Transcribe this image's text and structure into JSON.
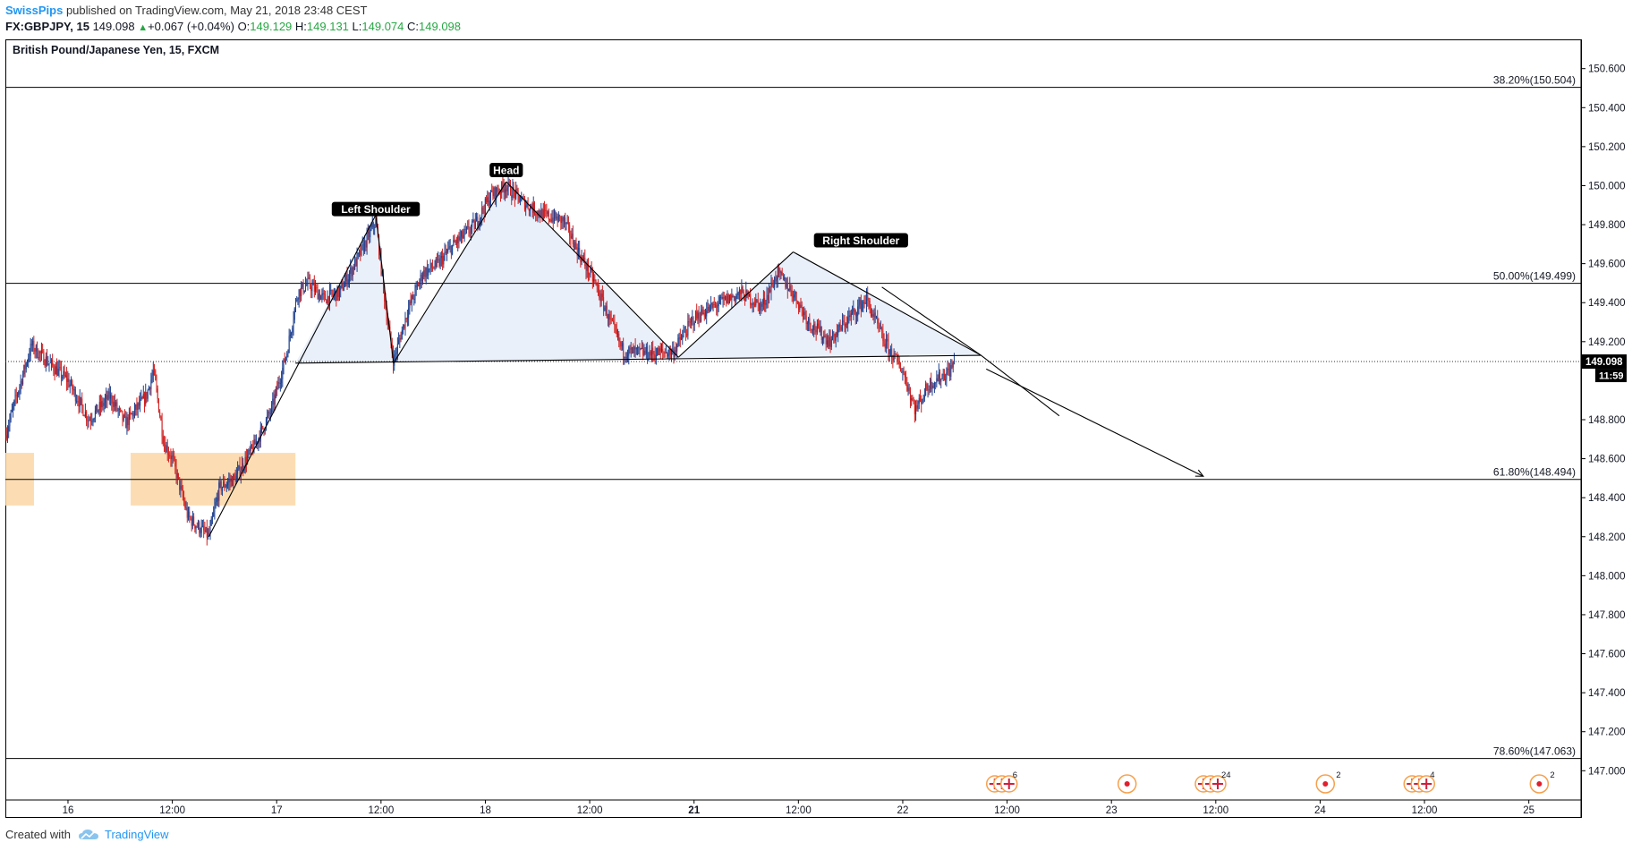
{
  "header": {
    "author": "SwissPips",
    "published": "published on TradingView.com, May 21, 2018 23:48 CEST",
    "symbol": "FX:GBPJPY, 15",
    "last": "149.098",
    "change": "+0.067 (+0.04%)",
    "o_label": "O:",
    "o_value": "149.129",
    "h_label": "H:",
    "h_value": "149.131",
    "l_label": "L:",
    "l_value": "149.074",
    "c_label": "C:",
    "c_value": "149.098"
  },
  "chart_data": {
    "type": "candlestick",
    "title": "British Pound/Japanese Yen, 15, FXCM",
    "ylim": [
      146.85,
      150.75
    ],
    "y_ticks": [
      "150.600",
      "150.400",
      "150.200",
      "150.000",
      "149.800",
      "149.600",
      "149.400",
      "149.200",
      "148.800",
      "148.600",
      "148.400",
      "148.200",
      "148.000",
      "147.800",
      "147.600",
      "147.400",
      "147.200",
      "147.000"
    ],
    "x_ticks": [
      {
        "label": "16",
        "pos": 0.5,
        "bold": false
      },
      {
        "label": "12:00",
        "pos": 1.5,
        "bold": false
      },
      {
        "label": "17",
        "pos": 2.5,
        "bold": false
      },
      {
        "label": "12:00",
        "pos": 3.5,
        "bold": false
      },
      {
        "label": "18",
        "pos": 4.5,
        "bold": false
      },
      {
        "label": "12:00",
        "pos": 5.5,
        "bold": false
      },
      {
        "label": "21",
        "pos": 6.5,
        "bold": true
      },
      {
        "label": "12:00",
        "pos": 7.5,
        "bold": false
      },
      {
        "label": "22",
        "pos": 8.5,
        "bold": false
      },
      {
        "label": "12:00",
        "pos": 9.5,
        "bold": false
      },
      {
        "label": "23",
        "pos": 10.5,
        "bold": false
      },
      {
        "label": "12:00",
        "pos": 11.5,
        "bold": false
      },
      {
        "label": "24",
        "pos": 12.5,
        "bold": false
      },
      {
        "label": "12:00",
        "pos": 13.5,
        "bold": false
      },
      {
        "label": "25",
        "pos": 14.5,
        "bold": false
      }
    ],
    "x_range": [
      -0.1,
      15.0
    ],
    "fib_levels": [
      {
        "label": "38.20%(150.504)",
        "value": 150.504
      },
      {
        "label": "50.00%(149.499)",
        "value": 149.499
      },
      {
        "label": "61.80%(148.494)",
        "value": 148.494
      },
      {
        "label": "78.60%(147.063)",
        "value": 147.063
      }
    ],
    "current_price": {
      "value": 149.098,
      "label": "149.098",
      "countdown": "11:59",
      "hidden_tick": "149.000"
    },
    "price_path": [
      [
        -0.1,
        148.72
      ],
      [
        0.05,
        149.0
      ],
      [
        0.15,
        149.18
      ],
      [
        0.3,
        149.1
      ],
      [
        0.5,
        149.0
      ],
      [
        0.7,
        148.8
      ],
      [
        0.9,
        148.92
      ],
      [
        1.05,
        148.78
      ],
      [
        1.25,
        148.92
      ],
      [
        1.32,
        149.05
      ],
      [
        1.42,
        148.68
      ],
      [
        1.5,
        148.6
      ],
      [
        1.65,
        148.3
      ],
      [
        1.85,
        148.2
      ],
      [
        1.95,
        148.45
      ],
      [
        2.1,
        148.5
      ],
      [
        2.3,
        148.68
      ],
      [
        2.45,
        148.85
      ],
      [
        2.6,
        149.15
      ],
      [
        2.7,
        149.45
      ],
      [
        2.8,
        149.5
      ],
      [
        2.95,
        149.42
      ],
      [
        3.1,
        149.45
      ],
      [
        3.3,
        149.65
      ],
      [
        3.45,
        149.82
      ],
      [
        3.55,
        149.35
      ],
      [
        3.62,
        149.1
      ],
      [
        3.75,
        149.35
      ],
      [
        3.9,
        149.55
      ],
      [
        4.05,
        149.6
      ],
      [
        4.2,
        149.7
      ],
      [
        4.4,
        149.8
      ],
      [
        4.55,
        149.95
      ],
      [
        4.7,
        150.0
      ],
      [
        4.85,
        149.92
      ],
      [
        5.05,
        149.85
      ],
      [
        5.25,
        149.82
      ],
      [
        5.4,
        149.65
      ],
      [
        5.55,
        149.5
      ],
      [
        5.7,
        149.3
      ],
      [
        5.82,
        149.15
      ],
      [
        6.1,
        149.14
      ],
      [
        6.3,
        149.15
      ],
      [
        6.5,
        149.32
      ],
      [
        6.75,
        149.4
      ],
      [
        6.95,
        149.45
      ],
      [
        7.15,
        149.38
      ],
      [
        7.3,
        149.55
      ],
      [
        7.45,
        149.45
      ],
      [
        7.6,
        149.3
      ],
      [
        7.8,
        149.2
      ],
      [
        7.95,
        149.3
      ],
      [
        8.15,
        149.42
      ],
      [
        8.32,
        149.2
      ],
      [
        8.5,
        149.05
      ],
      [
        8.62,
        148.85
      ],
      [
        8.75,
        148.98
      ],
      [
        8.95,
        149.05
      ],
      [
        9.0,
        149.1
      ]
    ],
    "pattern_labels": [
      {
        "text": "Left Shoulder",
        "x": 3.45,
        "y": 149.88
      },
      {
        "text": "Head",
        "x": 4.7,
        "y": 150.08
      },
      {
        "text": "Right Shoulder",
        "x": 8.1,
        "y": 149.72
      }
    ],
    "event_badges": [
      {
        "x": 9.45,
        "count": "6",
        "flag": "uk"
      },
      {
        "x": 10.65,
        "count": "",
        "flag": "dot"
      },
      {
        "x": 11.45,
        "count": "24",
        "flag": "uk"
      },
      {
        "x": 12.55,
        "count": "2",
        "flag": "dot"
      },
      {
        "x": 13.45,
        "count": "4",
        "flag": "uk"
      },
      {
        "x": 14.6,
        "count": "2",
        "flag": "dot"
      }
    ],
    "colors": {
      "up": "#1e3f8f",
      "down": "#d12020",
      "fib_line": "#000000",
      "pattern_fill": "#e8eef9",
      "zone": "#fbd7a6"
    }
  },
  "footer": {
    "created_with": "Created with",
    "brand": "TradingView"
  }
}
